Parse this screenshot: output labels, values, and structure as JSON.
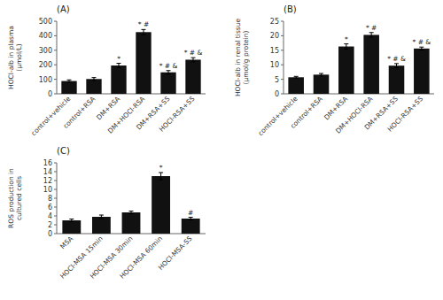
{
  "chart_data": [
    {
      "type": "bar",
      "title": "(A)",
      "ylabel": "HOCl-alb in plasma\n(μmol/L)",
      "categories": [
        "control+vehicle",
        "control+RSA",
        "DM+RSA",
        "DM+HOCl-RSA",
        "DM+RSA+SS",
        "HOCl-RSA+SS"
      ],
      "values": [
        88,
        102,
        195,
        425,
        148,
        235
      ],
      "errors": [
        8,
        10,
        15,
        18,
        12,
        14
      ],
      "ylim": [
        0,
        500
      ],
      "yticks": [
        0,
        100,
        200,
        300,
        400,
        500
      ],
      "annotations": [
        null,
        null,
        "*",
        "* #",
        "* # &",
        "* # &"
      ],
      "color": "#111111"
    },
    {
      "type": "bar",
      "title": "(B)",
      "ylabel": "HOCl-alb in renal tissue\n(μmol/g protein)",
      "categories": [
        "control+vehicle",
        "control+RSA",
        "DM+RSA",
        "DM+HOCl-RSA",
        "DM+RSA+SS",
        "HOCl-RSA+SS"
      ],
      "values": [
        5.7,
        6.6,
        16.3,
        20.3,
        9.7,
        15.6
      ],
      "errors": [
        0.3,
        0.4,
        0.9,
        0.8,
        0.7,
        0.5
      ],
      "ylim": [
        0,
        25
      ],
      "yticks": [
        0,
        5,
        10,
        15,
        20,
        25
      ],
      "annotations": [
        null,
        null,
        "*",
        "* #",
        "* # &",
        "* # &"
      ],
      "color": "#111111"
    },
    {
      "type": "bar",
      "title": "(C)",
      "ylabel": "ROS production in\ncultured cells",
      "categories": [
        "MSA",
        "HOCl-MSA 15min",
        "HOCl-MSA 30min",
        "HOCl-MSA 60min",
        "HOCl-MSA-SS"
      ],
      "values": [
        3.0,
        3.8,
        4.8,
        13.0,
        3.4
      ],
      "errors": [
        0.3,
        0.4,
        0.3,
        0.8,
        0.3
      ],
      "ylim": [
        0,
        16
      ],
      "yticks": [
        0,
        2,
        4,
        6,
        8,
        10,
        12,
        14,
        16
      ],
      "annotations": [
        null,
        null,
        null,
        "*",
        "#"
      ],
      "color": "#111111"
    }
  ]
}
